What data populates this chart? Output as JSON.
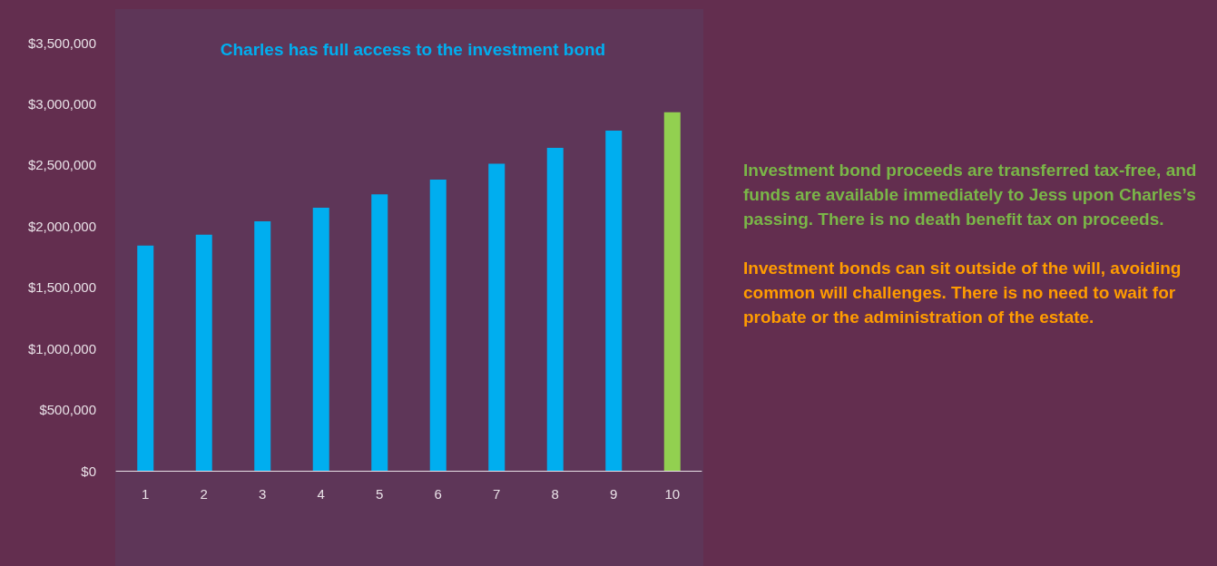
{
  "chart_data": {
    "type": "bar",
    "title": "Charles has full access to the investment bond",
    "categories": [
      "1",
      "2",
      "3",
      "4",
      "5",
      "6",
      "7",
      "8",
      "9",
      "10"
    ],
    "values": [
      1840000,
      1930000,
      2040000,
      2150000,
      2260000,
      2380000,
      2510000,
      2640000,
      2780000,
      2930000
    ],
    "colors": [
      "#00aeef",
      "#00aeef",
      "#00aeef",
      "#00aeef",
      "#00aeef",
      "#00aeef",
      "#00aeef",
      "#00aeef",
      "#00aeef",
      "#92d050"
    ],
    "ylim": [
      0,
      3500000
    ],
    "yticks": [
      {
        "value": 0,
        "label": "$0"
      },
      {
        "value": 500000,
        "label": "$500,000"
      },
      {
        "value": 1000000,
        "label": "$1,000,000"
      },
      {
        "value": 1500000,
        "label": "$1,500,000"
      },
      {
        "value": 2000000,
        "label": "$2,000,000"
      },
      {
        "value": 2500000,
        "label": "$2,500,000"
      },
      {
        "value": 3000000,
        "label": "$3,000,000"
      },
      {
        "value": 3500000,
        "label": "$3,500,000"
      }
    ],
    "grid": false,
    "annotations": [
      "Investment bond proceeds are transferred tax-free, and funds are available immediately to Jess upon Charles’s passing. There is no death benefit tax on proceeds.",
      "Investment bonds can sit outside of the will, avoiding common will challenges. There is no need to wait for probate or the administration of the estate."
    ]
  }
}
